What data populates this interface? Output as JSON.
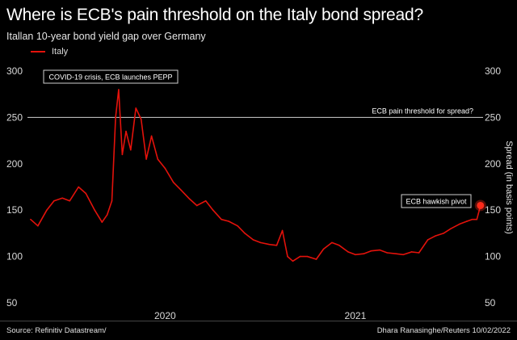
{
  "header": {
    "title": "Where is ECB's pain threshold on the Italy bond spread?",
    "subtitle": "Itallan 10-year bond yield gap over Germany"
  },
  "footer": {
    "source": "Source: Refinitiv Datastream/",
    "credit": "Dhara Ranasinghe/Reuters 10/02/2022"
  },
  "colors": {
    "background": "#000000",
    "series": "#e3120b",
    "threshold_line": "#d0d0d0",
    "marker": "#ff2a1a"
  },
  "chart_data": {
    "type": "line",
    "title": "Where is ECB's pain threshold on the Italy bond spread?",
    "subtitle": "Itallan 10-year bond yield gap over Germany",
    "ylabel": "Spread (in basis points)",
    "ylim": [
      50,
      300
    ],
    "yticks": [
      50,
      100,
      150,
      200,
      250,
      300
    ],
    "x_ticks": [
      "2020",
      "2021"
    ],
    "grid": false,
    "legend": "top-left",
    "series": [
      {
        "name": "Italy",
        "color": "#e3120b",
        "x": [
          "2019-10-01",
          "2019-10-15",
          "2019-11-01",
          "2019-11-15",
          "2019-12-01",
          "2019-12-15",
          "2020-01-01",
          "2020-01-15",
          "2020-02-01",
          "2020-02-15",
          "2020-02-25",
          "2020-03-05",
          "2020-03-12",
          "2020-03-18",
          "2020-03-25",
          "2020-04-01",
          "2020-04-10",
          "2020-04-20",
          "2020-04-30",
          "2020-05-10",
          "2020-05-20",
          "2020-06-01",
          "2020-06-15",
          "2020-07-01",
          "2020-07-15",
          "2020-08-01",
          "2020-08-15",
          "2020-09-01",
          "2020-09-15",
          "2020-10-01",
          "2020-10-15",
          "2020-11-01",
          "2020-11-15",
          "2020-12-01",
          "2020-12-15",
          "2021-01-01",
          "2021-01-15",
          "2021-01-26",
          "2021-02-05",
          "2021-02-15",
          "2021-03-01",
          "2021-03-15",
          "2021-04-01",
          "2021-04-15",
          "2021-05-01",
          "2021-05-15",
          "2021-06-01",
          "2021-06-15",
          "2021-07-01",
          "2021-07-15",
          "2021-08-01",
          "2021-08-15",
          "2021-09-01",
          "2021-09-15",
          "2021-10-01",
          "2021-10-15",
          "2021-11-01",
          "2021-11-15",
          "2021-12-01",
          "2021-12-15",
          "2022-01-01",
          "2022-01-15",
          "2022-01-25",
          "2022-02-03",
          "2022-02-10"
        ],
        "y": [
          140,
          133,
          150,
          160,
          163,
          160,
          175,
          168,
          150,
          137,
          145,
          160,
          250,
          280,
          210,
          235,
          215,
          260,
          248,
          205,
          230,
          205,
          195,
          180,
          172,
          162,
          155,
          160,
          150,
          140,
          138,
          133,
          125,
          118,
          115,
          113,
          112,
          128,
          100,
          95,
          100,
          100,
          97,
          108,
          115,
          112,
          105,
          102,
          103,
          106,
          107,
          104,
          103,
          102,
          105,
          104,
          118,
          122,
          125,
          130,
          135,
          138,
          140,
          140,
          155
        ]
      }
    ],
    "reference_lines": [
      {
        "label": "ECB pain threshold for spread?",
        "y": 250
      }
    ],
    "annotations": [
      {
        "text": "COVID-19 crisis, ECB launches PEPP",
        "x": "2020-03-18",
        "y": 280
      },
      {
        "text": "ECB hawkish pivot",
        "x": "2022-02-10",
        "y": 155
      }
    ]
  }
}
